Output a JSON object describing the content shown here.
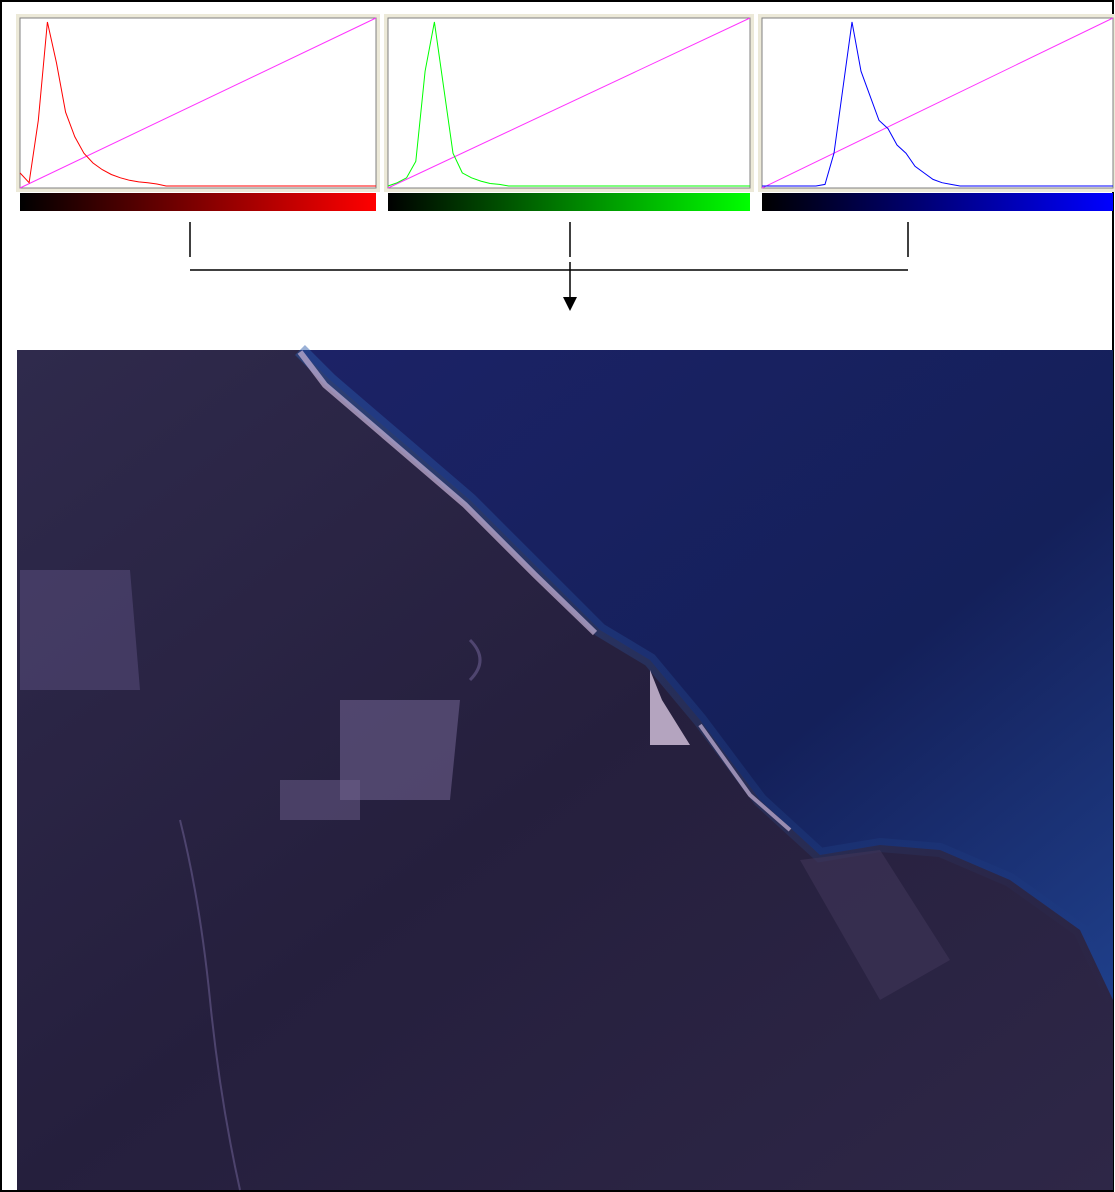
{
  "panels": [
    {
      "color": "#ff0000",
      "values": [
        0.08,
        0.02,
        0.4,
        1,
        0.75,
        0.45,
        0.3,
        0.2,
        0.14,
        0.1,
        0.07,
        0.05,
        0.035,
        0.025,
        0.02,
        0.012,
        0,
        0,
        0,
        0,
        0,
        0,
        0,
        0,
        0,
        0,
        0,
        0,
        0,
        0,
        0,
        0,
        0,
        0,
        0,
        0,
        0,
        0,
        0,
        0
      ]
    },
    {
      "color": "#00ff00",
      "values": [
        0,
        0.02,
        0.05,
        0.15,
        0.7,
        1,
        0.6,
        0.2,
        0.08,
        0.05,
        0.03,
        0.015,
        0.01,
        0,
        0,
        0,
        0,
        0,
        0,
        0,
        0,
        0,
        0,
        0,
        0,
        0,
        0,
        0,
        0,
        0,
        0,
        0,
        0,
        0,
        0,
        0,
        0,
        0,
        0,
        0
      ]
    },
    {
      "color": "#0000ff",
      "values": [
        0,
        0,
        0,
        0,
        0,
        0,
        0,
        0.01,
        0.2,
        0.6,
        1,
        0.7,
        0.55,
        0.4,
        0.35,
        0.25,
        0.2,
        0.12,
        0.08,
        0.04,
        0.02,
        0.01,
        0,
        0,
        0,
        0,
        0,
        0,
        0,
        0,
        0,
        0,
        0,
        0,
        0,
        0,
        0,
        0,
        0,
        0
      ]
    }
  ]
}
